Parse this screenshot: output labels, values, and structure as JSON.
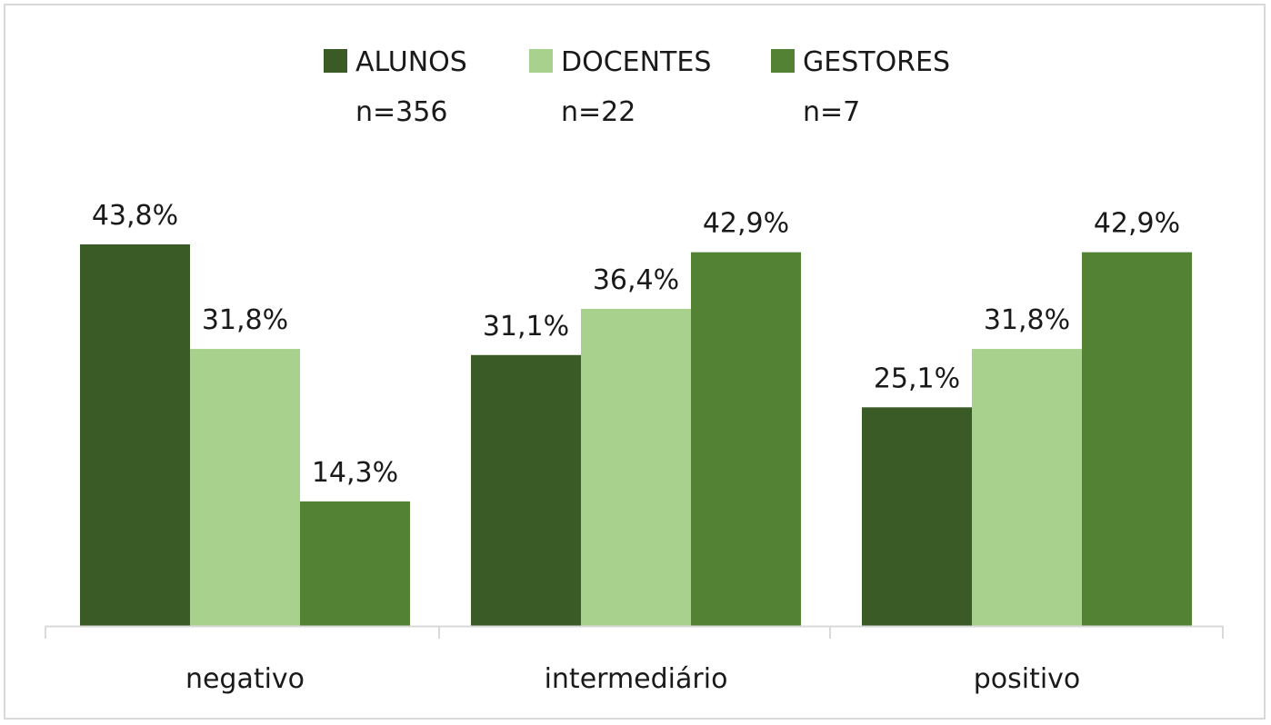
{
  "chart_data": {
    "type": "bar",
    "categories": [
      "negativo",
      "intermediário",
      "positivo"
    ],
    "series": [
      {
        "name": "ALUNOS",
        "n_label": "n=356",
        "color": "#3a5a26",
        "values": [
          43.8,
          31.1,
          25.1
        ],
        "labels": [
          "43,8%",
          "31,1%",
          "25,1%"
        ]
      },
      {
        "name": "DOCENTES",
        "n_label": "n=22",
        "color": "#a9d18e",
        "values": [
          31.8,
          36.4,
          31.8
        ],
        "labels": [
          "31,8%",
          "36,4%",
          "31,8%"
        ]
      },
      {
        "name": "GESTORES",
        "n_label": "n=7",
        "color": "#548235",
        "values": [
          14.3,
          42.9,
          42.9
        ],
        "labels": [
          "14,3%",
          "42,9%",
          "42,9%"
        ]
      }
    ],
    "unit": "%",
    "ylim": [
      0,
      43.8
    ],
    "legend_position": "top",
    "grid": false,
    "axis_color": "#d9d9d9"
  }
}
